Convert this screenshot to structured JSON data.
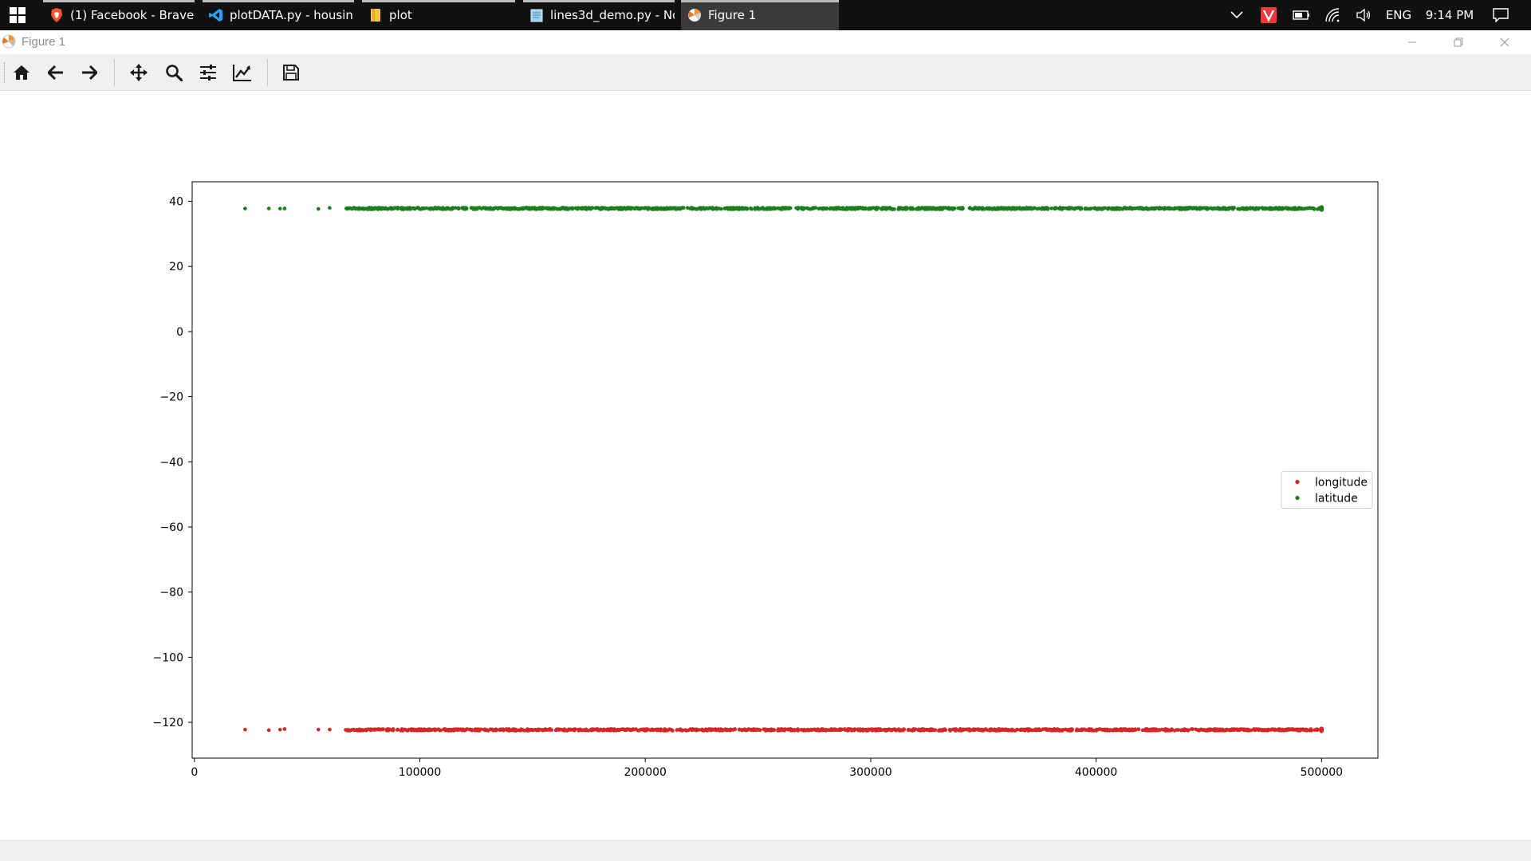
{
  "taskbar": {
    "tabs": [
      {
        "label": "(1) Facebook - Brave",
        "icon": "brave-icon"
      },
      {
        "label": "plotDATA.py - housin...",
        "icon": "vscode-icon"
      },
      {
        "label": "plot",
        "icon": "folder-icon"
      },
      {
        "label": "lines3d_demo.py - No...",
        "icon": "notepad-icon"
      },
      {
        "label": "Figure 1",
        "icon": "matplotlib-icon"
      }
    ],
    "tray": {
      "language": "ENG",
      "time": "9:14 PM"
    }
  },
  "window": {
    "title": "Figure 1"
  },
  "toolbar": {
    "buttons": [
      "home-icon",
      "back-icon",
      "forward-icon",
      "pan-icon",
      "zoom-icon",
      "configure-subplots-icon",
      "edit-axis-icon",
      "save-icon"
    ]
  },
  "chart_data": {
    "type": "scatter",
    "title": "",
    "xlabel": "",
    "ylabel": "",
    "xlim": [
      -1000,
      525000
    ],
    "ylim": [
      -131,
      46
    ],
    "x_ticks": [
      0,
      100000,
      200000,
      300000,
      400000,
      500000
    ],
    "y_ticks": [
      40,
      20,
      0,
      -20,
      -40,
      -60,
      -80,
      -100,
      -120
    ],
    "x_tick_labels": [
      "0",
      "100000",
      "200000",
      "300000",
      "400000",
      "500000"
    ],
    "y_tick_labels": [
      "40",
      "20",
      "0",
      "−20",
      "−40",
      "−60",
      "−80",
      "−100",
      "−120"
    ],
    "legend_position": "center-right",
    "grid": false,
    "series": [
      {
        "name": "longitude",
        "color": "#d62728",
        "y_center": -122.3,
        "y_spread": 0.5,
        "sparse_x": [
          22500,
          33000,
          38000,
          40000,
          55000,
          60000
        ],
        "dense_x_range": [
          67000,
          500001
        ]
      },
      {
        "name": "latitude",
        "color": "#1a7f1a",
        "y_center": 37.8,
        "y_spread": 0.5,
        "sparse_x": [
          22500,
          33000,
          38000,
          40000,
          55000,
          60000
        ],
        "dense_x_range": [
          67000,
          500001
        ]
      }
    ]
  }
}
